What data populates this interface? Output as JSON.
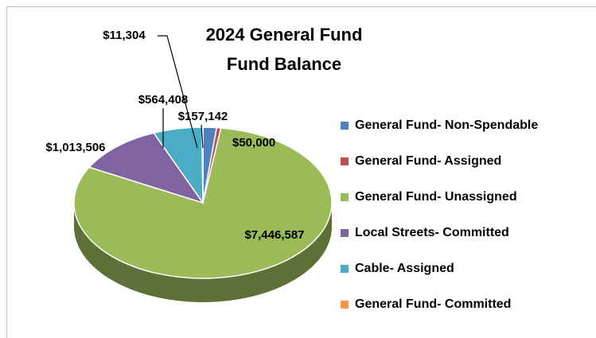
{
  "chart_data": {
    "type": "pie",
    "title": [
      "2024 General Fund",
      "Fund Balance"
    ],
    "categories": [
      "General Fund- Non-Spendable",
      "General Fund- Assigned",
      "General Fund- Unassigned",
      "Local Streets- Committed",
      "Cable- Assigned",
      "General Fund- Committed"
    ],
    "values": [
      157142,
      50000,
      7446587,
      1013506,
      564408,
      11304
    ],
    "value_labels": [
      "$157,142",
      "$50,000",
      "$7,446,587",
      "$1,013,506",
      "$564,408",
      "$11,304"
    ],
    "colors": [
      "#4f81bd",
      "#c0504d",
      "#9bbb59",
      "#8064a2",
      "#4bacc6",
      "#f79646"
    ],
    "legend": "right"
  }
}
